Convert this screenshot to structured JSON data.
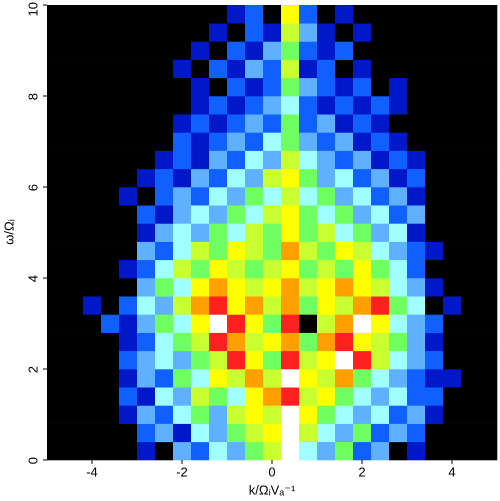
{
  "chart_data": {
    "type": "heatmap",
    "x_label": "k/ΩᵢVₐ⁻¹",
    "y_label": "ω/Ωᵢ",
    "xlim": [
      -5,
      5
    ],
    "ylim": [
      0,
      10
    ],
    "xticks": [
      -4,
      -2,
      0,
      2,
      4
    ],
    "yticks": [
      0,
      2,
      4,
      6,
      8,
      10
    ],
    "zlim": [
      0,
      10
    ],
    "colormap": [
      "#000000",
      "#0018c8",
      "#1060ff",
      "#5fb0ff",
      "#a0ffff",
      "#70ff60",
      "#c8ff30",
      "#ffff00",
      "#ffa000",
      "#ff2020",
      "#ffffff"
    ],
    "z": [
      [
        0,
        0,
        0,
        0,
        0,
        1,
        0,
        3,
        2,
        4,
        3,
        5,
        6,
        10,
        4,
        3,
        5,
        2,
        3,
        0,
        1,
        0,
        0,
        0,
        0
      ],
      [
        0,
        0,
        0,
        0,
        0,
        2,
        3,
        1,
        4,
        3,
        5,
        6,
        7,
        10,
        6,
        4,
        3,
        5,
        2,
        3,
        2,
        0,
        0,
        0,
        0
      ],
      [
        0,
        0,
        0,
        0,
        1,
        3,
        2,
        4,
        5,
        3,
        6,
        7,
        6,
        10,
        7,
        5,
        4,
        3,
        4,
        2,
        3,
        1,
        0,
        0,
        0
      ],
      [
        0,
        0,
        0,
        0,
        2,
        1,
        4,
        3,
        6,
        5,
        4,
        7,
        8,
        9,
        6,
        7,
        5,
        4,
        3,
        4,
        2,
        2,
        0,
        0,
        0
      ],
      [
        0,
        0,
        0,
        0,
        1,
        3,
        2,
        5,
        4,
        7,
        6,
        8,
        6,
        10,
        7,
        6,
        8,
        5,
        4,
        3,
        2,
        1,
        1,
        0,
        0
      ],
      [
        0,
        0,
        0,
        0,
        2,
        3,
        4,
        3,
        5,
        6,
        9,
        7,
        5,
        9,
        6,
        7,
        10,
        9,
        6,
        4,
        3,
        2,
        0,
        0,
        0
      ],
      [
        0,
        0,
        0,
        0,
        1,
        2,
        4,
        5,
        6,
        9,
        8,
        6,
        7,
        8,
        5,
        8,
        9,
        7,
        6,
        5,
        3,
        1,
        0,
        0,
        0
      ],
      [
        0,
        0,
        0,
        2,
        1,
        3,
        5,
        4,
        7,
        10,
        9,
        7,
        5,
        9,
        0,
        6,
        8,
        10,
        7,
        4,
        3,
        2,
        0,
        0,
        0
      ],
      [
        0,
        0,
        1,
        0,
        2,
        4,
        3,
        6,
        8,
        9,
        7,
        8,
        6,
        8,
        5,
        7,
        6,
        8,
        9,
        5,
        4,
        0,
        1,
        0,
        0
      ],
      [
        0,
        0,
        0,
        0,
        0,
        3,
        5,
        4,
        7,
        8,
        7,
        6,
        7,
        8,
        6,
        7,
        8,
        7,
        6,
        4,
        3,
        1,
        0,
        0,
        0
      ],
      [
        0,
        0,
        0,
        0,
        1,
        2,
        4,
        6,
        5,
        7,
        6,
        5,
        6,
        7,
        5,
        6,
        5,
        7,
        5,
        4,
        2,
        0,
        0,
        0,
        0
      ],
      [
        0,
        0,
        0,
        0,
        0,
        3,
        2,
        4,
        6,
        5,
        7,
        6,
        5,
        8,
        6,
        5,
        7,
        6,
        4,
        3,
        2,
        1,
        0,
        0,
        0
      ],
      [
        0,
        0,
        0,
        0,
        0,
        1,
        3,
        4,
        3,
        5,
        4,
        6,
        5,
        7,
        5,
        6,
        4,
        5,
        3,
        4,
        1,
        0,
        0,
        0,
        0
      ],
      [
        0,
        0,
        0,
        0,
        0,
        2,
        1,
        3,
        4,
        3,
        5,
        4,
        6,
        7,
        5,
        4,
        5,
        3,
        4,
        2,
        3,
        0,
        0,
        0,
        0
      ],
      [
        0,
        0,
        0,
        0,
        1,
        0,
        2,
        3,
        2,
        4,
        3,
        5,
        4,
        6,
        4,
        5,
        3,
        4,
        2,
        3,
        1,
        0,
        0,
        0,
        0
      ],
      [
        0,
        0,
        0,
        0,
        0,
        1,
        2,
        1,
        3,
        2,
        4,
        3,
        6,
        7,
        5,
        3,
        4,
        2,
        3,
        1,
        2,
        0,
        0,
        0,
        0
      ],
      [
        0,
        0,
        0,
        0,
        0,
        0,
        1,
        2,
        1,
        3,
        2,
        4,
        3,
        6,
        4,
        3,
        2,
        3,
        1,
        2,
        1,
        0,
        0,
        0,
        0
      ],
      [
        0,
        0,
        0,
        0,
        0,
        0,
        0,
        2,
        1,
        2,
        3,
        2,
        4,
        5,
        3,
        2,
        3,
        1,
        2,
        1,
        0,
        0,
        0,
        0,
        0
      ],
      [
        0,
        0,
        0,
        0,
        0,
        0,
        0,
        1,
        2,
        1,
        2,
        3,
        2,
        5,
        2,
        3,
        1,
        2,
        1,
        0,
        0,
        0,
        0,
        0,
        0
      ],
      [
        0,
        0,
        0,
        0,
        0,
        0,
        0,
        0,
        1,
        2,
        1,
        2,
        3,
        4,
        2,
        1,
        2,
        1,
        2,
        1,
        0,
        0,
        0,
        0,
        0
      ],
      [
        0,
        0,
        0,
        0,
        0,
        0,
        0,
        0,
        1,
        0,
        2,
        1,
        2,
        5,
        3,
        2,
        1,
        2,
        0,
        1,
        0,
        0,
        0,
        0,
        0
      ],
      [
        0,
        0,
        0,
        0,
        0,
        0,
        0,
        1,
        0,
        2,
        1,
        3,
        2,
        6,
        1,
        2,
        0,
        1,
        0,
        0,
        0,
        0,
        0,
        0,
        0
      ],
      [
        0,
        0,
        0,
        0,
        0,
        0,
        0,
        0,
        1,
        0,
        2,
        1,
        3,
        5,
        2,
        1,
        2,
        0,
        0,
        0,
        0,
        0,
        0,
        0,
        0
      ],
      [
        0,
        0,
        0,
        0,
        0,
        0,
        0,
        0,
        0,
        1,
        0,
        2,
        1,
        6,
        3,
        1,
        0,
        1,
        0,
        0,
        0,
        0,
        0,
        0,
        0
      ],
      [
        0,
        0,
        0,
        0,
        0,
        0,
        0,
        0,
        0,
        0,
        1,
        2,
        0,
        7,
        2,
        0,
        1,
        0,
        0,
        0,
        0,
        0,
        0,
        0,
        0
      ]
    ]
  }
}
